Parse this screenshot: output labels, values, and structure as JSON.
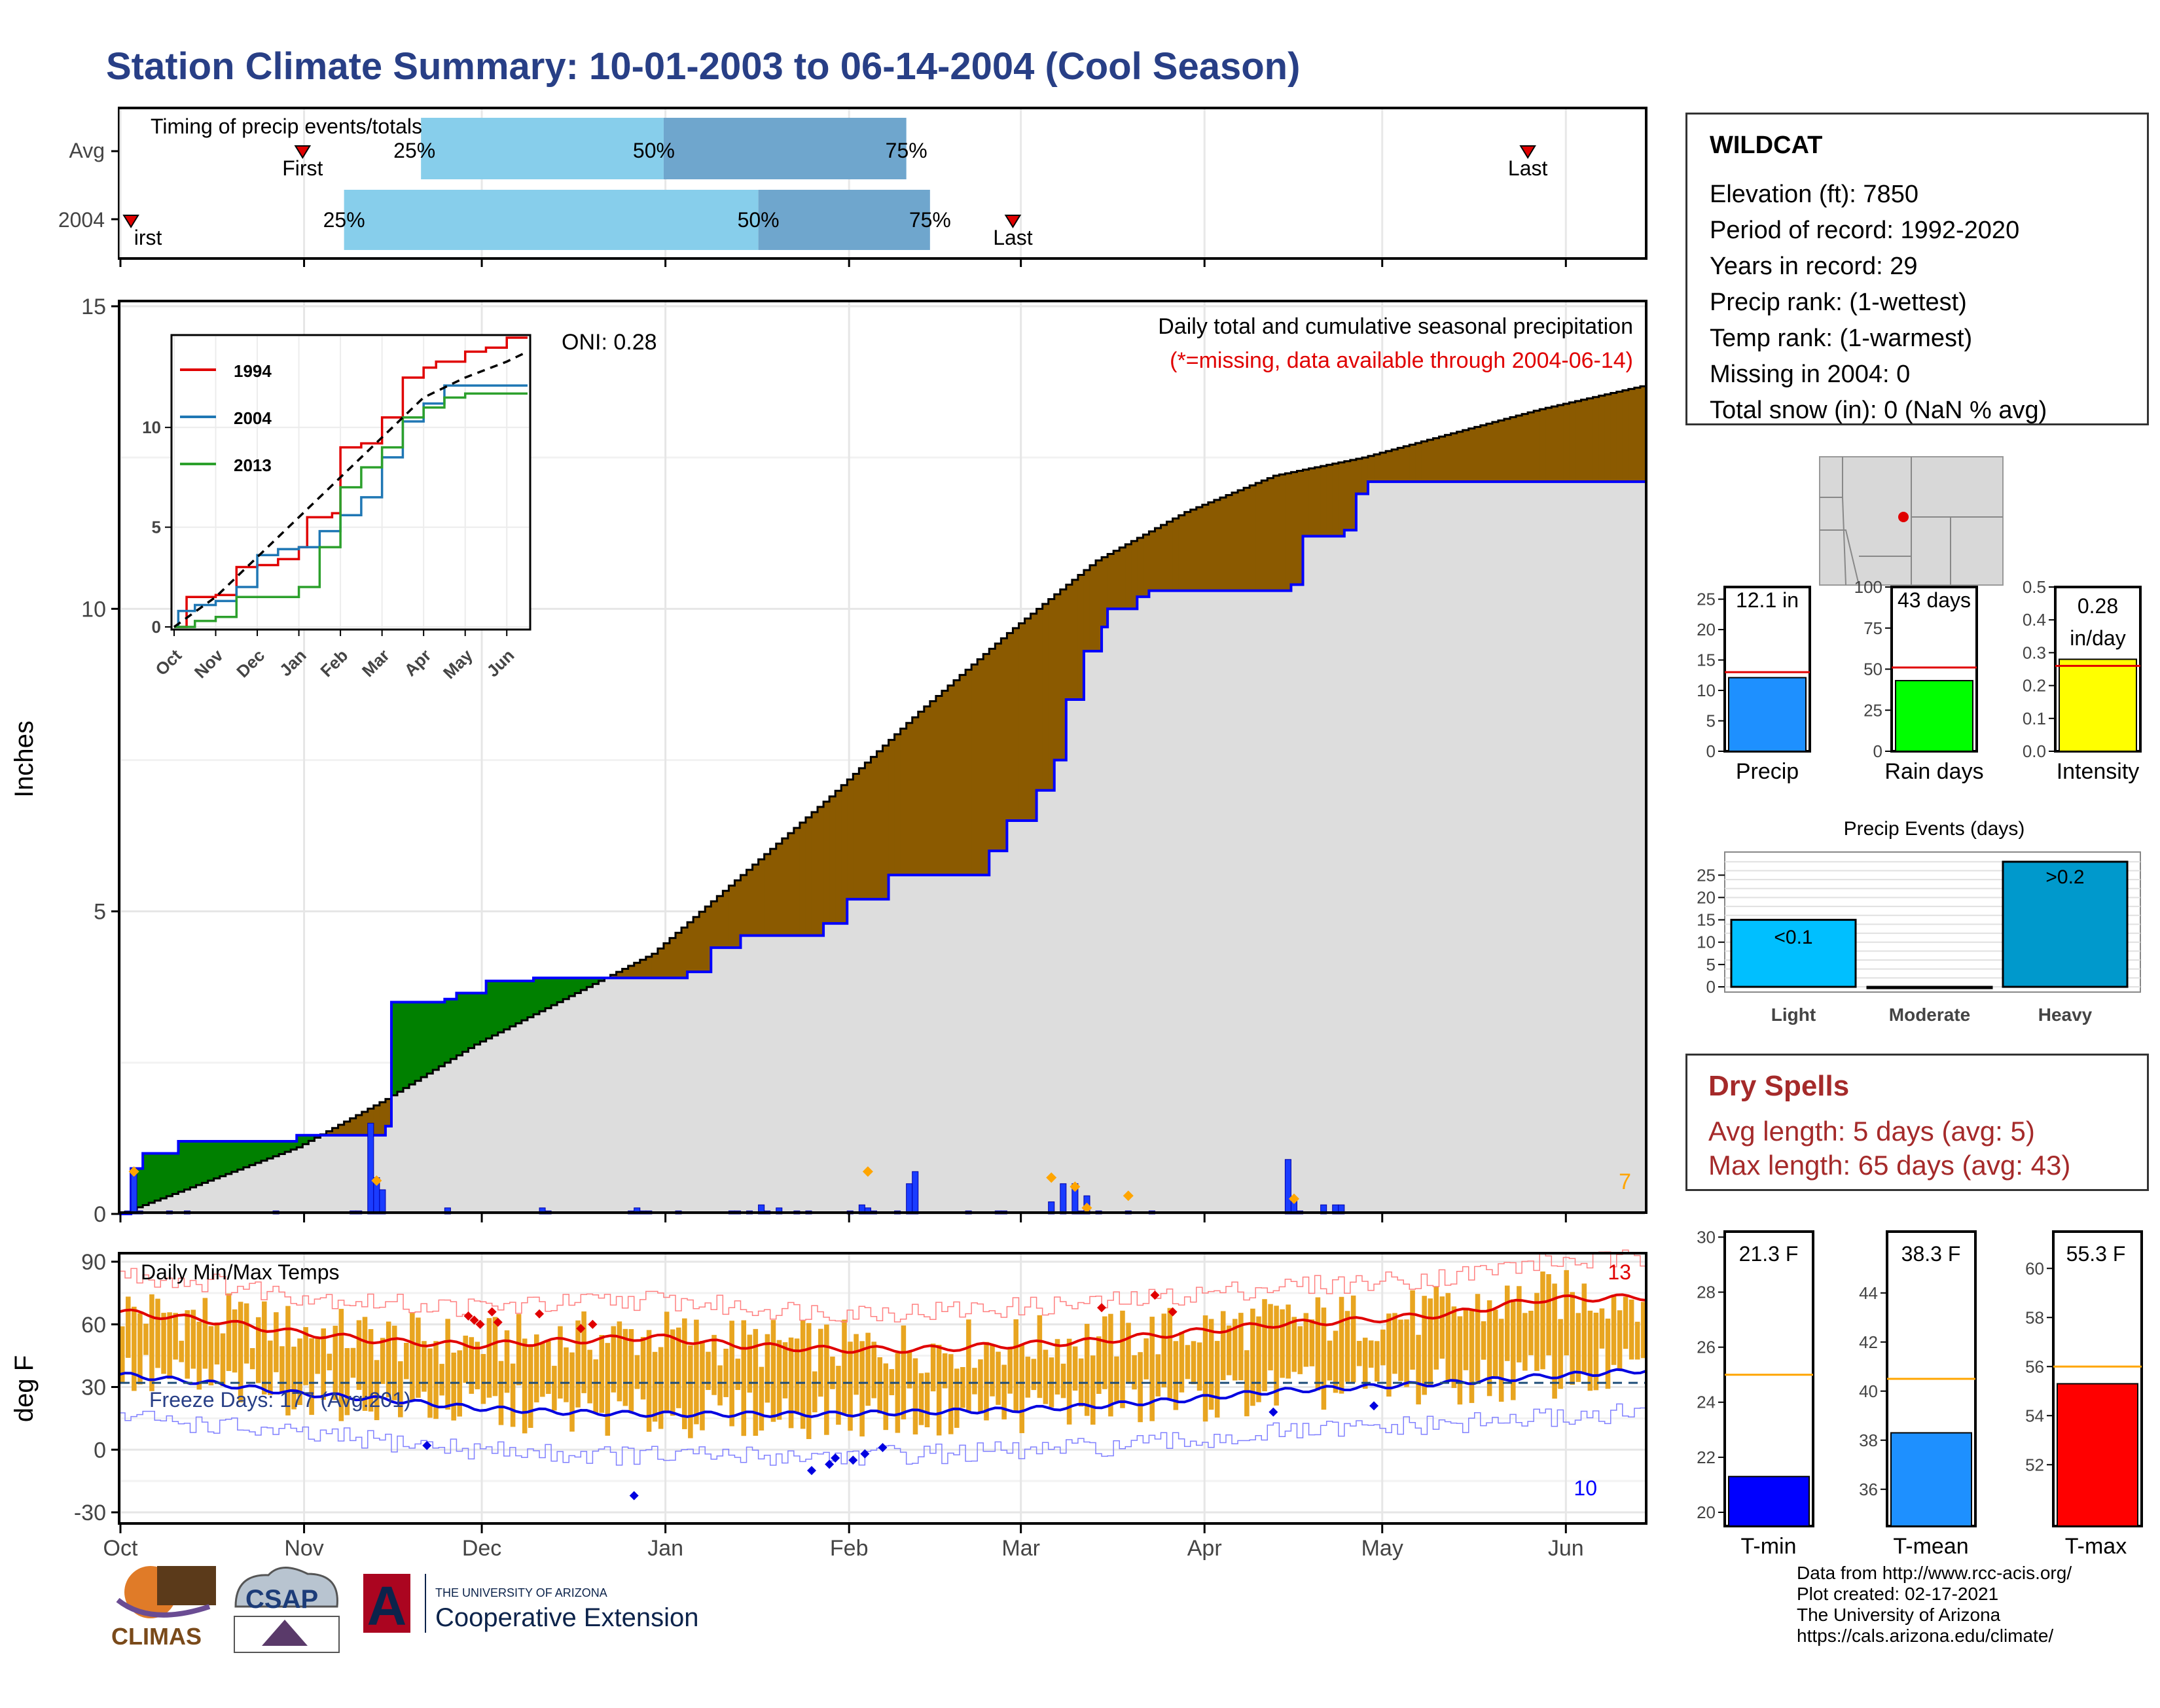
{
  "title": "Station Climate Summary: 10-01-2003 to 06-14-2004 (Cool Season)",
  "timing": {
    "title": "Timing of precip events/totals",
    "rows": [
      {
        "label": "Avg",
        "first_doy": 31,
        "last_doy": 238,
        "q25_doy": 51,
        "q50_doy": 92,
        "q75_doy": 133,
        "q100_doy": 133
      },
      {
        "label": "2004",
        "first_doy": 2,
        "last_doy": 151,
        "q25_doy": 38,
        "q50_doy": 108,
        "q75_doy": 137
      }
    ],
    "first_label": "First",
    "first_label_2004": "irst",
    "last_label": "Last",
    "pct25": "25%",
    "pct50": "50%",
    "pct75": "75%"
  },
  "main_chart": {
    "ylabel": "Inches",
    "y_ticks": [
      0,
      5,
      10,
      15
    ],
    "ylim": [
      0,
      15
    ],
    "note1": "Daily total and cumulative seasonal precipitation",
    "note2": "(*=missing, data available through 2004-06-14)",
    "oni": "ONI: 0.28",
    "corner_count": "7",
    "x_months": [
      "Oct",
      "Nov",
      "Dec",
      "Jan",
      "Feb",
      "Mar",
      "Apr",
      "May",
      "Jun"
    ],
    "colors": {
      "avg_fill": "#8b5a00",
      "above_fill": "#008000",
      "cum_line": "#0000ff",
      "area": "#dddddd",
      "bars": "#0000ff",
      "markers": "#ffa500"
    }
  },
  "chart_data": [
    {
      "type": "area",
      "title": "Daily total and cumulative seasonal precipitation",
      "ylabel": "Inches",
      "ylim": [
        0,
        15
      ],
      "x_unit": "day of season (0 = Oct 1)",
      "cumulative_2004": {
        "x": [
          0,
          2,
          4,
          10,
          30,
          45,
          46,
          55,
          57,
          62,
          70,
          96,
          100,
          105,
          119,
          123,
          130,
          147,
          150,
          155,
          158,
          160,
          163,
          166,
          167,
          172,
          174,
          198,
          200,
          207,
          209,
          211,
          258
        ],
        "y": [
          0,
          0.75,
          1.0,
          1.2,
          1.3,
          1.45,
          3.5,
          3.55,
          3.65,
          3.85,
          3.9,
          4.0,
          4.4,
          4.6,
          4.8,
          5.2,
          5.6,
          6.0,
          6.5,
          7.0,
          7.5,
          8.5,
          9.3,
          9.7,
          10.0,
          10.2,
          10.3,
          10.4,
          11.2,
          11.3,
          11.9,
          12.1,
          12.1
        ]
      },
      "cumulative_avg": {
        "x": [
          0,
          30,
          45,
          60,
          70,
          90,
          105,
          120,
          135,
          150,
          165,
          180,
          195,
          210,
          225,
          240,
          258
        ],
        "y": [
          0,
          1.1,
          1.9,
          2.8,
          3.3,
          4.3,
          5.6,
          6.9,
          8.3,
          9.6,
          10.8,
          11.6,
          12.2,
          12.5,
          12.9,
          13.3,
          13.7
        ]
      },
      "daily_bars": {
        "x": [
          1,
          2,
          3,
          8,
          11,
          26,
          39,
          40,
          42,
          43,
          44,
          55,
          71,
          72,
          86,
          87,
          88,
          89,
          94,
          103,
          104,
          106,
          108,
          109,
          111,
          114,
          116,
          123,
          125,
          126,
          127,
          131,
          133,
          134,
          143,
          148,
          149,
          159,
          157,
          161,
          162,
          163,
          165,
          170,
          174,
          197,
          198,
          199,
          203,
          205,
          206
        ],
        "y": [
          0.05,
          0.75,
          0.05,
          0.05,
          0.05,
          0.05,
          0.05,
          0.05,
          1.5,
          0.6,
          0.4,
          0.1,
          0.1,
          0.05,
          0.05,
          0.1,
          0.05,
          0.05,
          0.05,
          0.05,
          0.05,
          0.05,
          0.15,
          0.05,
          0.1,
          0.05,
          0.05,
          0.05,
          0.15,
          0.1,
          0.05,
          0.05,
          0.5,
          0.7,
          0.05,
          0.05,
          0.05,
          0.5,
          0.2,
          0.5,
          0.05,
          0.3,
          0.05,
          0.05,
          0.05,
          0.9,
          0.25,
          0.05,
          0.15,
          0.15,
          0.15
        ]
      }
    },
    {
      "type": "line",
      "title": "",
      "categories": [
        "Oct",
        "Nov",
        "Dec",
        "Jan",
        "Feb",
        "Mar",
        "Apr",
        "May",
        "Jun"
      ],
      "yticks": [
        0,
        5,
        10
      ],
      "ylim": [
        0,
        14.5
      ],
      "series": [
        {
          "name": "1994",
          "x": [
            0,
            0.3,
            1.0,
            1.5,
            2.0,
            2.5,
            3.0,
            3.2,
            3.8,
            4.0,
            4.5,
            5.0,
            5.5,
            6.0,
            6.3,
            7.0,
            7.5,
            8.0,
            8.5
          ],
          "y": [
            0,
            1.5,
            1.6,
            3.0,
            3.1,
            3.4,
            4.0,
            5.5,
            5.7,
            9.0,
            9.2,
            10.5,
            12.5,
            13.0,
            13.3,
            13.8,
            14.0,
            14.5,
            14.5
          ]
        },
        {
          "name": "2004",
          "x": [
            0,
            0.1,
            0.5,
            1.0,
            1.5,
            2.0,
            2.5,
            3.0,
            3.5,
            4.0,
            4.5,
            5.0,
            5.5,
            6.0,
            6.5,
            7.0,
            8.5
          ],
          "y": [
            0,
            0.8,
            1.1,
            1.3,
            2.0,
            3.6,
            3.9,
            4.0,
            4.8,
            5.6,
            6.5,
            8.5,
            10.3,
            11.2,
            12.1,
            12.1,
            12.1
          ]
        },
        {
          "name": "2013",
          "x": [
            0,
            0.5,
            1.0,
            1.5,
            2.5,
            3.0,
            3.5,
            4.0,
            4.5,
            5.0,
            5.5,
            6.0,
            6.5,
            7.0,
            7.5,
            8.5
          ],
          "y": [
            0,
            0.3,
            0.5,
            1.5,
            1.5,
            2.0,
            4.0,
            7.0,
            8.0,
            9.0,
            10.5,
            11.0,
            11.5,
            11.7,
            11.7,
            11.7
          ]
        },
        {
          "x": [
            0,
            1,
            2,
            3,
            4,
            5,
            6,
            7,
            8,
            8.5
          ],
          "y": [
            0,
            1.5,
            3.5,
            5.5,
            7.5,
            9.5,
            11.5,
            12.5,
            13.3,
            13.8
          ]
        }
      ]
    },
    {
      "type": "bar",
      "title": "",
      "categories": [
        "Precip",
        "Rain days",
        "Intensity"
      ],
      "values": [
        12.1,
        43,
        0.28
      ],
      "averages": [
        13.0,
        51,
        0.26
      ],
      "value_labels": [
        "12.1 in",
        "43 days",
        "0.28\nin/day"
      ],
      "ylims": [
        [
          0,
          27
        ],
        [
          0,
          100
        ],
        [
          0,
          0.5
        ]
      ],
      "yticks": [
        [
          0,
          5,
          10,
          15,
          20,
          25
        ],
        [
          0,
          25,
          50,
          75,
          100
        ],
        [
          0.0,
          0.1,
          0.2,
          0.3,
          0.4,
          0.5
        ]
      ]
    },
    {
      "type": "bar",
      "title": "Precip Events (days)",
      "categories": [
        "Light",
        "Moderate",
        "Heavy"
      ],
      "values": [
        15,
        0,
        28
      ],
      "bar_labels": [
        "<0.1",
        "",
        ">0.2"
      ],
      "ylim": [
        0,
        29
      ],
      "yticks": [
        0,
        5,
        10,
        15,
        20,
        25
      ]
    },
    {
      "type": "bar",
      "title": "Daily Min/Max Temps",
      "ylabel": "deg F",
      "ylim": [
        -35,
        95
      ],
      "yticks": [
        -30,
        0,
        30,
        60,
        90
      ],
      "freeze_line": 32,
      "annotation": "Freeze Days: 177 (Avg:201)",
      "corner_high": "13",
      "corner_low": "10",
      "avg_max": {
        "x": [
          0,
          15,
          30,
          45,
          60,
          75,
          90,
          105,
          120,
          135,
          150,
          165,
          180,
          195,
          210,
          225,
          240,
          258
        ],
        "y": [
          66,
          62,
          56,
          52,
          50,
          52,
          54,
          50,
          48,
          48,
          50,
          52,
          56,
          60,
          62,
          65,
          72,
          73
        ]
      },
      "avg_min": {
        "x": [
          0,
          15,
          30,
          45,
          60,
          75,
          90,
          105,
          120,
          135,
          150,
          165,
          180,
          195,
          210,
          225,
          240,
          258
        ],
        "y": [
          36,
          32,
          27,
          24,
          20,
          18,
          17,
          17,
          17,
          18,
          19,
          21,
          24,
          28,
          30,
          32,
          35,
          38
        ]
      }
    },
    {
      "type": "bar",
      "title": "",
      "categories": [
        "T-min",
        "T-mean",
        "T-max"
      ],
      "values": [
        21.3,
        38.3,
        55.3
      ],
      "averages": [
        25.0,
        40.5,
        56.0
      ],
      "value_labels": [
        "21.3 F",
        "38.3 F",
        "55.3 F"
      ],
      "ylims": [
        [
          19.5,
          30.2
        ],
        [
          34.5,
          46.5
        ],
        [
          49.5,
          61.5
        ]
      ],
      "yticks": [
        [
          20,
          22,
          24,
          26,
          28,
          30
        ],
        [
          36,
          38,
          40,
          42,
          44
        ],
        [
          52,
          54,
          56,
          58,
          60
        ]
      ]
    }
  ],
  "temps": {
    "title": "Daily Min/Max Temps",
    "ylabel": "deg F",
    "y_ticks": [
      -30,
      0,
      30,
      60,
      90
    ],
    "freeze_label": "Freeze Days: 177 (Avg:201)",
    "corner_high": "13",
    "corner_low": "10"
  },
  "station": {
    "name": "WILDCAT",
    "rows": [
      "Elevation (ft): 7850",
      "Period of record: 1992-2020",
      "Years in record: 29",
      "Precip rank:  (1-wettest)",
      "Temp rank:  (1-warmest)",
      "Missing in 2004: 0",
      "Total snow (in): 0 (NaN % avg)"
    ]
  },
  "inset": {
    "legend": [
      "1994",
      "2004",
      "2013"
    ],
    "x_months": [
      "Oct",
      "Nov",
      "Dec",
      "Jan",
      "Feb",
      "Mar",
      "Apr",
      "May",
      "Jun"
    ]
  },
  "summary_bars": {
    "labels": [
      "Precip",
      "Rain days",
      "Intensity"
    ],
    "value_labels": [
      "12.1 in",
      "43 days",
      "0.28",
      "in/day"
    ]
  },
  "events": {
    "title": "Precip Events (days)",
    "labels": [
      "Light",
      "Moderate",
      "Heavy"
    ],
    "bar_labels": [
      "<0.1",
      ">0.2"
    ]
  },
  "dry_spells": {
    "title": "Dry Spells",
    "avg": "Avg length: 5 days (avg: 5)",
    "max": "Max length: 65 days (avg: 43)"
  },
  "temp_bars": {
    "labels": [
      "T-min",
      "T-mean",
      "T-max"
    ],
    "value_labels": [
      "21.3 F",
      "38.3 F",
      "55.3 F"
    ]
  },
  "credits": [
    "Data from http://www.rcc-acis.org/",
    "Plot created: 02-17-2021",
    "The University of Arizona",
    "https://cals.arizona.edu/climate/"
  ],
  "logos": {
    "climas": "CLIMAS",
    "csap": "CSAP",
    "ua_small": "THE UNIVERSITY OF ARIZONA",
    "ua_big": "Cooperative Extension",
    "ua_letter": "A"
  }
}
